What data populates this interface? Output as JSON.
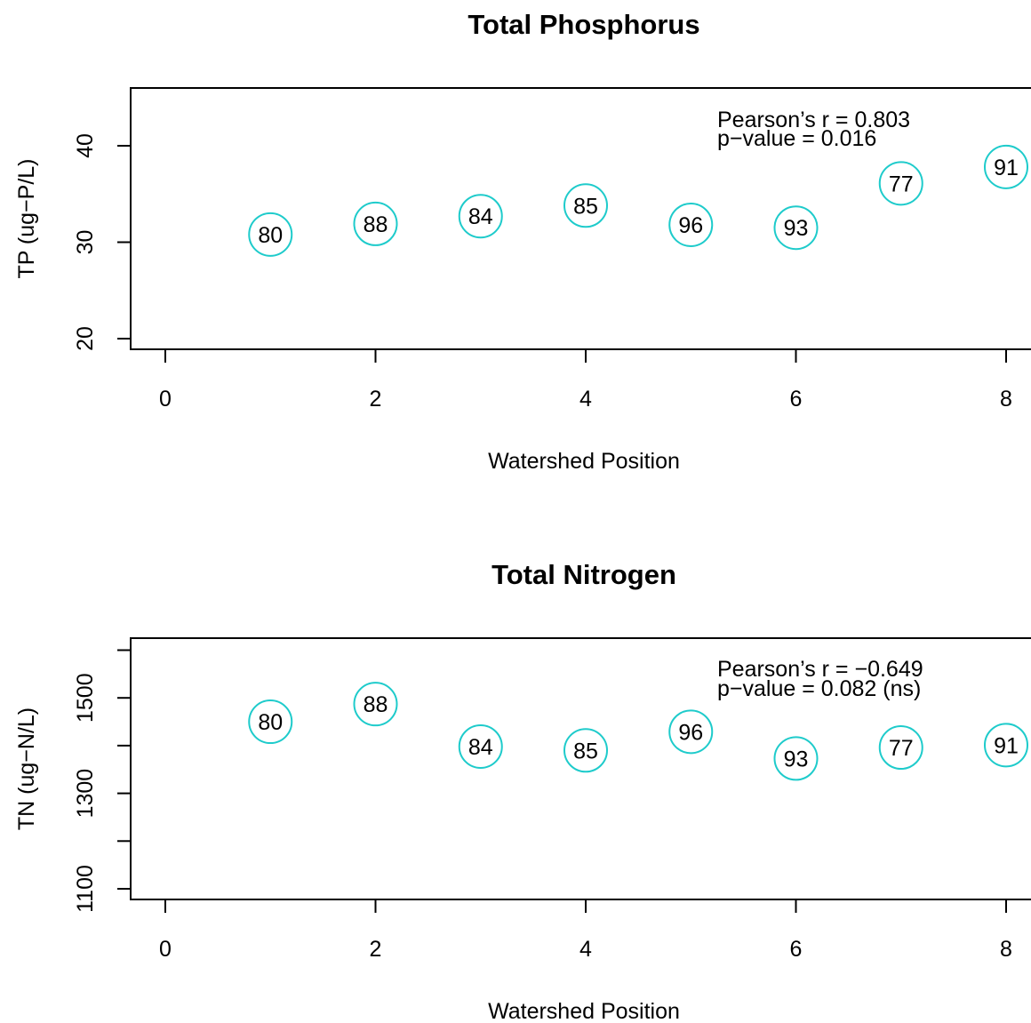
{
  "chart_data": [
    {
      "type": "scatter",
      "title": "Total Phosphorus",
      "xlabel": "Watershed Position",
      "ylabel": "TP (ug−P/L)",
      "xlim": [
        -0.5,
        8.5
      ],
      "ylim": [
        19,
        45
      ],
      "x_ticks": [
        "0",
        "2",
        "4",
        "6",
        "8"
      ],
      "y_ticks": [
        "20",
        "30",
        "40"
      ],
      "annotations": [
        "Pearson’s r = 0.803",
        "p−value = 0.016"
      ],
      "marker_color": "#1ECBCB",
      "points": [
        {
          "x": 1,
          "y": 30.8,
          "label": "80"
        },
        {
          "x": 2,
          "y": 31.9,
          "label": "88"
        },
        {
          "x": 3,
          "y": 32.7,
          "label": "84"
        },
        {
          "x": 4,
          "y": 33.8,
          "label": "85"
        },
        {
          "x": 5,
          "y": 31.8,
          "label": "96"
        },
        {
          "x": 6,
          "y": 31.5,
          "label": "93"
        },
        {
          "x": 7,
          "y": 36.1,
          "label": "77"
        },
        {
          "x": 8,
          "y": 37.8,
          "label": "91"
        }
      ]
    },
    {
      "type": "scatter",
      "title": "Total Nitrogen",
      "xlabel": "Watershed Position",
      "ylabel": "TN (ug−N/L)",
      "xlim": [
        -0.5,
        8.5
      ],
      "ylim": [
        1080,
        1620
      ],
      "x_ticks": [
        "0",
        "2",
        "4",
        "6",
        "8"
      ],
      "y_ticks": [
        "1100",
        "1300",
        "1500"
      ],
      "y_minor_ticks": [
        1200,
        1400,
        1600
      ],
      "annotations": [
        "Pearson’s r = −0.649",
        "p−value = 0.082 (ns)"
      ],
      "marker_color": "#1ECBCB",
      "points": [
        {
          "x": 1,
          "y": 1450,
          "label": "80"
        },
        {
          "x": 2,
          "y": 1487,
          "label": "88"
        },
        {
          "x": 3,
          "y": 1398,
          "label": "84"
        },
        {
          "x": 4,
          "y": 1390,
          "label": "85"
        },
        {
          "x": 5,
          "y": 1429,
          "label": "96"
        },
        {
          "x": 6,
          "y": 1373,
          "label": "93"
        },
        {
          "x": 7,
          "y": 1396,
          "label": "77"
        },
        {
          "x": 8,
          "y": 1401,
          "label": "91"
        }
      ]
    }
  ]
}
